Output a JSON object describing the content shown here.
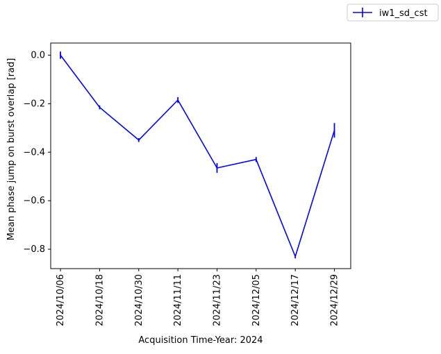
{
  "chart_data": {
    "type": "line",
    "title": "",
    "xlabel": "Acquisition Time-Year: 2024",
    "ylabel": "Mean phase jump on burst overlap [rad]",
    "x": [
      "2024/10/06",
      "2024/10/18",
      "2024/10/30",
      "2024/11/11",
      "2024/11/23",
      "2024/12/05",
      "2024/12/17",
      "2024/12/29"
    ],
    "x_tick_labels": [
      "2024/10/06",
      "2024/10/18",
      "2024/10/30",
      "2024/11/11",
      "2024/11/23",
      "2024/12/05",
      "2024/12/17",
      "2024/12/29"
    ],
    "y_ticks": [
      0.0,
      -0.2,
      -0.4,
      -0.6,
      -0.8
    ],
    "y_tick_labels": [
      "0.0",
      "−0.2",
      "−0.4",
      "−0.6",
      "−0.8"
    ],
    "ylim": [
      -0.88,
      0.05
    ],
    "xlim": [
      "2024/10/03",
      "2025/01/03"
    ],
    "grid": false,
    "legend_position": "outside-top-right",
    "series": [
      {
        "name": "iw1_sd_cst",
        "color": "#0000ff",
        "values": [
          0.0,
          -0.215,
          -0.35,
          -0.185,
          -0.465,
          -0.43,
          -0.83,
          -0.31
        ],
        "errors": [
          0.015,
          0.008,
          0.008,
          0.012,
          0.02,
          0.01,
          0.008,
          0.03
        ]
      }
    ]
  }
}
